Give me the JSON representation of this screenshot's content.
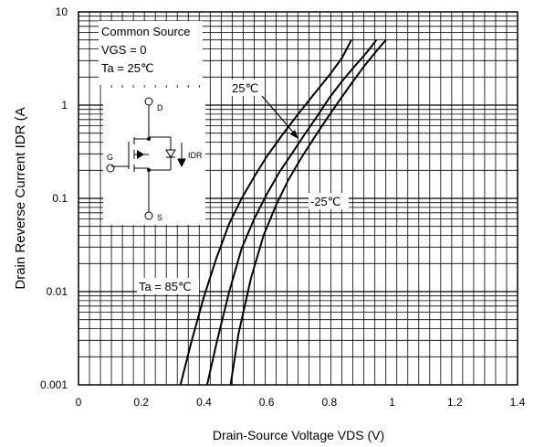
{
  "chart_data": {
    "type": "line",
    "xlabel": "Drain-Source Voltage VDS (V)",
    "ylabel": "Drain Reverse Current  IDR (A",
    "xlim": [
      0,
      1.4
    ],
    "ylim": [
      0.001,
      10
    ],
    "yscale": "log",
    "x_ticks": [
      "0",
      "0.2",
      "0.4",
      "0.6",
      "0.8",
      "1",
      "1.2",
      "1.4"
    ],
    "x_tick_values": [
      0,
      0.2,
      0.4,
      0.6,
      0.8,
      1.0,
      1.2,
      1.4
    ],
    "y_ticks": [
      "0.001",
      "0.01",
      "0.1",
      "1",
      "10"
    ],
    "y_tick_values": [
      0.001,
      0.01,
      0.1,
      1,
      10
    ],
    "grid": true,
    "conditions": [
      "Common Source",
      "VGS = 0",
      "Ta = 25℃"
    ],
    "series": [
      {
        "name": "Ta = 85℃",
        "x": [
          0.325,
          0.36,
          0.4,
          0.44,
          0.48,
          0.52,
          0.56,
          0.6,
          0.65,
          0.7,
          0.75,
          0.8,
          0.84,
          0.87
        ],
        "y": [
          0.001,
          0.0029,
          0.0088,
          0.023,
          0.053,
          0.1,
          0.17,
          0.28,
          0.48,
          0.8,
          1.3,
          2.1,
          3.2,
          5
        ]
      },
      {
        "name": "25℃",
        "x": [
          0.41,
          0.44,
          0.48,
          0.52,
          0.56,
          0.6,
          0.64,
          0.68,
          0.72,
          0.76,
          0.8,
          0.84,
          0.88,
          0.92,
          0.95
        ],
        "y": [
          0.001,
          0.0028,
          0.0098,
          0.029,
          0.06,
          0.11,
          0.19,
          0.3,
          0.48,
          0.75,
          1.2,
          1.8,
          2.6,
          3.7,
          5
        ]
      },
      {
        "name": "-25℃",
        "x": [
          0.485,
          0.51,
          0.55,
          0.59,
          0.63,
          0.67,
          0.71,
          0.75,
          0.79,
          0.83,
          0.87,
          0.91,
          0.95,
          0.98
        ],
        "y": [
          0.001,
          0.0035,
          0.014,
          0.04,
          0.085,
          0.16,
          0.27,
          0.44,
          0.7,
          1.1,
          1.7,
          2.6,
          3.8,
          5
        ]
      }
    ]
  },
  "legend": {
    "line1": "Common Source",
    "line2": "VGS = 0",
    "line3": "Ta = 25℃"
  },
  "annotations": {
    "t85": "Ta = 85℃",
    "t25": "25℃",
    "tm25": "-25℃"
  },
  "circuit": {
    "drain": "D",
    "gate": "G",
    "source": "S",
    "idr": "IDR"
  }
}
